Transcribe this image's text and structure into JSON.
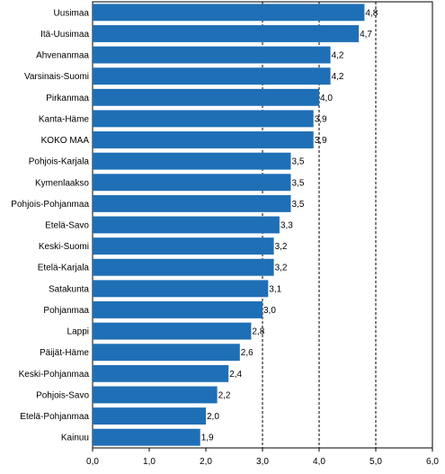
{
  "chart_data": {
    "type": "bar",
    "orientation": "horizontal",
    "categories": [
      "Uusimaa",
      "Itä-Uusimaa",
      "Ahvenanmaa",
      "Varsinais-Suomi",
      "Pirkanmaa",
      "Kanta-Häme",
      "KOKO MAA",
      "Pohjois-Karjala",
      "Kymenlaakso",
      "Pohjois-Pohjanmaa",
      "Etelä-Savo",
      "Keski-Suomi",
      "Etelä-Karjala",
      "Satakunta",
      "Pohjanmaa",
      "Lappi",
      "Päijät-Häme",
      "Keski-Pohjanmaa",
      "Pohjois-Savo",
      "Etelä-Pohjanmaa",
      "Kainuu"
    ],
    "values": [
      4.8,
      4.7,
      4.2,
      4.2,
      4.0,
      3.9,
      3.9,
      3.5,
      3.5,
      3.5,
      3.3,
      3.2,
      3.2,
      3.1,
      3.0,
      2.8,
      2.6,
      2.4,
      2.2,
      2.0,
      1.9
    ],
    "value_labels": [
      "4,8",
      "4,7",
      "4,2",
      "4,2",
      "4,0",
      "3,9",
      "3,9",
      "3,5",
      "3,5",
      "3,5",
      "3,3",
      "3,2",
      "3,2",
      "3,1",
      "3,0",
      "2,8",
      "2,6",
      "2,4",
      "2,2",
      "2,0",
      "1,9"
    ],
    "xlim": [
      0,
      6
    ],
    "xticks": [
      0,
      1,
      2,
      3,
      4,
      5,
      6
    ],
    "xtick_labels": [
      "0,0",
      "1,0",
      "2,0",
      "3,0",
      "4,0",
      "5,0",
      "6,0"
    ],
    "gridlines": {
      "style": "dashed",
      "at": [
        3,
        4,
        5
      ]
    },
    "title": "",
    "xlabel": "",
    "ylabel": "",
    "bar_color": "#1f6fb6",
    "legend": "none"
  }
}
